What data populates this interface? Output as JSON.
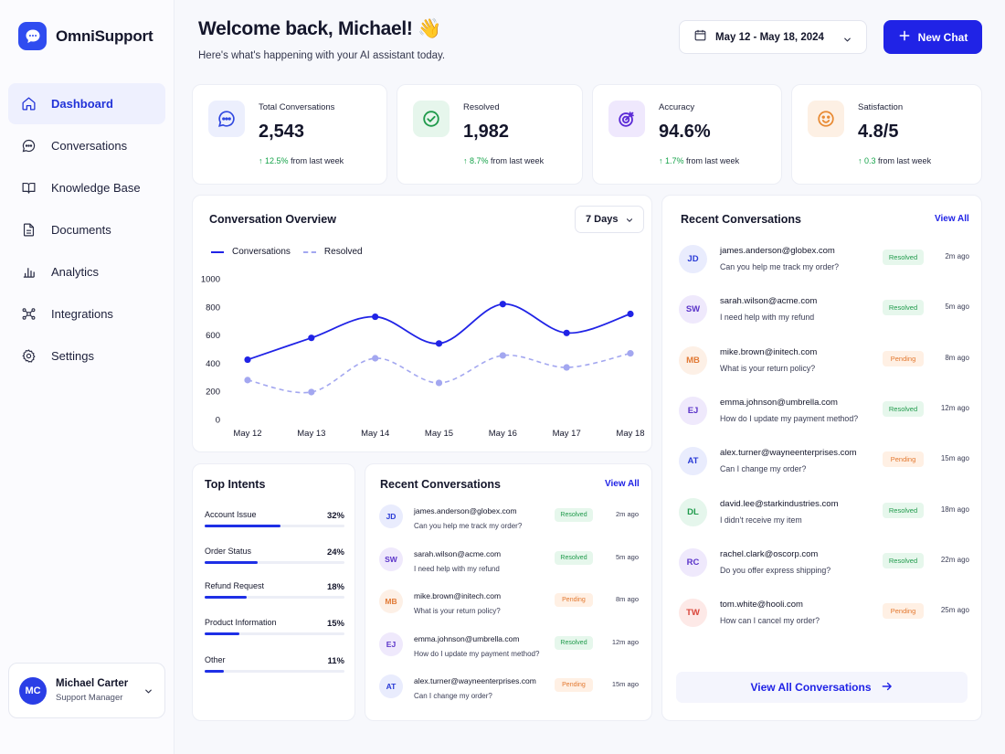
{
  "app": {
    "name": "OmniSupport"
  },
  "nav": [
    {
      "label": "Dashboard",
      "icon": "home-icon",
      "active": true
    },
    {
      "label": "Conversations",
      "icon": "chat-icon"
    },
    {
      "label": "Knowledge Base",
      "icon": "book-icon"
    },
    {
      "label": "Documents",
      "icon": "document-icon"
    },
    {
      "label": "Analytics",
      "icon": "bar-chart-icon"
    },
    {
      "label": "Integrations",
      "icon": "integrations-icon"
    },
    {
      "label": "Settings",
      "icon": "gear-icon"
    }
  ],
  "user": {
    "initials": "MC",
    "name": "Michael Carter",
    "role": "Support Manager"
  },
  "header": {
    "greeting": "Welcome back, Michael! 👋",
    "subtitle": "Here's what's happening with your AI assistant today.",
    "date_range": "May 12 - May 18, 2024",
    "new_chat": "New Chat"
  },
  "stats": [
    {
      "label": "Total Conversations",
      "value": "2,543",
      "change": "12.5%",
      "change_suffix": "from last week",
      "icon": "chat-icon",
      "color": "#2f47e0",
      "bg": "#eceffd"
    },
    {
      "label": "Resolved",
      "value": "1,982",
      "change": "8.7%",
      "change_suffix": "from last week",
      "icon": "check-circle-icon",
      "color": "#1f9a4b",
      "bg": "#e6f6ec"
    },
    {
      "label": "Accuracy",
      "value": "94.6%",
      "change": "1.7%",
      "change_suffix": "from last week",
      "icon": "target-icon",
      "color": "#5b2ad6",
      "bg": "#efe8fd"
    },
    {
      "label": "Satisfaction",
      "value": "4.8/5",
      "change": "0.3",
      "change_suffix": "from last week",
      "icon": "smile-icon",
      "color": "#e88a33",
      "bg": "#fdf0e4"
    }
  ],
  "overview": {
    "title": "Conversation Overview",
    "range": "7 Days"
  },
  "chart_data": {
    "type": "line",
    "x": [
      "May 12",
      "May 13",
      "May 14",
      "May 15",
      "May 16",
      "May 17",
      "May 18"
    ],
    "series": [
      {
        "name": "Conversations",
        "values": [
          425,
          580,
          730,
          540,
          820,
          615,
          750
        ],
        "color": "#2023e6",
        "style": "solid"
      },
      {
        "name": "Resolved",
        "values": [
          280,
          195,
          435,
          260,
          455,
          370,
          470
        ],
        "color": "#a3a7f0",
        "style": "dashed"
      }
    ],
    "yticks": [
      0,
      200,
      400,
      600,
      800,
      1000
    ],
    "ylim": [
      0,
      1000
    ],
    "legend": "top-left",
    "grid": false
  },
  "intents": {
    "title": "Top Intents",
    "items": [
      {
        "name": "Account Issue",
        "pct": "32%",
        "value": 0.54
      },
      {
        "name": "Order Status",
        "pct": "24%",
        "value": 0.38
      },
      {
        "name": "Refund Request",
        "pct": "18%",
        "value": 0.3
      },
      {
        "name": "Product Information",
        "pct": "15%",
        "value": 0.25
      },
      {
        "name": "Other",
        "pct": "11%",
        "value": 0.14
      }
    ]
  },
  "recent_small": {
    "title": "Recent Conversations",
    "view_all": "View All",
    "items": [
      {
        "initials": "JD",
        "email": "james.anderson@globex.com",
        "message": "Can you help me track my order?",
        "status": "Resolved",
        "time": "2m ago",
        "color": "blue"
      },
      {
        "initials": "SW",
        "email": "sarah.wilson@acme.com",
        "message": "I need help with my refund",
        "status": "Resolved",
        "time": "5m ago",
        "color": "purple"
      },
      {
        "initials": "MB",
        "email": "mike.brown@initech.com",
        "message": "What is your return policy?",
        "status": "Pending",
        "time": "8m ago",
        "color": "orange"
      },
      {
        "initials": "EJ",
        "email": "emma.johnson@umbrella.com",
        "message": "How do I update my payment method?",
        "status": "Resolved",
        "time": "12m ago",
        "color": "purple"
      },
      {
        "initials": "AT",
        "email": "alex.turner@wayneenterprises.com",
        "message": "Can I change my order?",
        "status": "Pending",
        "time": "15m ago",
        "color": "blue"
      }
    ]
  },
  "recent_large": {
    "title": "Recent Conversations",
    "view_all": "View All",
    "button": "View All Conversations",
    "items": [
      {
        "initials": "JD",
        "email": "james.anderson@globex.com",
        "message": "Can you help me track my order?",
        "status": "Resolved",
        "time": "2m ago",
        "color": "blue"
      },
      {
        "initials": "SW",
        "email": "sarah.wilson@acme.com",
        "message": "I need help with my refund",
        "status": "Resolved",
        "time": "5m ago",
        "color": "purple"
      },
      {
        "initials": "MB",
        "email": "mike.brown@initech.com",
        "message": "What is your return policy?",
        "status": "Pending",
        "time": "8m ago",
        "color": "orange"
      },
      {
        "initials": "EJ",
        "email": "emma.johnson@umbrella.com",
        "message": "How do I update my payment method?",
        "status": "Resolved",
        "time": "12m ago",
        "color": "purple"
      },
      {
        "initials": "AT",
        "email": "alex.turner@wayneenterprises.com",
        "message": "Can I change my order?",
        "status": "Pending",
        "time": "15m ago",
        "color": "blue"
      },
      {
        "initials": "DL",
        "email": "david.lee@starkindustries.com",
        "message": "I didn't receive my item",
        "status": "Resolved",
        "time": "18m ago",
        "color": "green"
      },
      {
        "initials": "RC",
        "email": "rachel.clark@oscorp.com",
        "message": "Do you offer express shipping?",
        "status": "Resolved",
        "time": "22m ago",
        "color": "purple"
      },
      {
        "initials": "TW",
        "email": "tom.white@hooli.com",
        "message": "How can I cancel my order?",
        "status": "Pending",
        "time": "25m ago",
        "color": "red"
      }
    ]
  }
}
